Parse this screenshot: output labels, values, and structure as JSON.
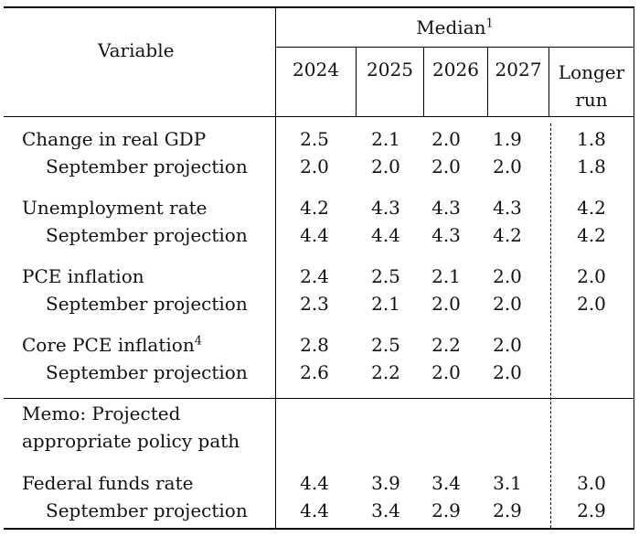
{
  "header": {
    "variable": "Variable",
    "median": "Median",
    "median_note": "1",
    "years": [
      "2024",
      "2025",
      "2026",
      "2027"
    ],
    "longer_run_line1": "Longer",
    "longer_run_line2": "run"
  },
  "rows": [
    {
      "label": "Change in real GDP",
      "note": "",
      "values": [
        "2.5",
        "2.1",
        "2.0",
        "1.9",
        "1.8"
      ]
    },
    {
      "label": "September projection",
      "note": "",
      "values": [
        "2.0",
        "2.0",
        "2.0",
        "2.0",
        "1.8"
      ]
    },
    {
      "label": "Unemployment rate",
      "note": "",
      "values": [
        "4.2",
        "4.3",
        "4.3",
        "4.3",
        "4.2"
      ]
    },
    {
      "label": "September projection",
      "note": "",
      "values": [
        "4.4",
        "4.4",
        "4.3",
        "4.2",
        "4.2"
      ]
    },
    {
      "label": "PCE inflation",
      "note": "",
      "values": [
        "2.4",
        "2.5",
        "2.1",
        "2.0",
        "2.0"
      ]
    },
    {
      "label": "September projection",
      "note": "",
      "values": [
        "2.3",
        "2.1",
        "2.0",
        "2.0",
        "2.0"
      ]
    },
    {
      "label": "Core PCE inflation",
      "note": "4",
      "values": [
        "2.8",
        "2.5",
        "2.2",
        "2.0",
        ""
      ]
    },
    {
      "label": "September projection",
      "note": "",
      "values": [
        "2.6",
        "2.2",
        "2.0",
        "2.0",
        ""
      ]
    }
  ],
  "memo": {
    "line1": "Memo: Projected",
    "line2": "appropriate policy path",
    "rows": [
      {
        "label": "Federal funds rate",
        "values": [
          "4.4",
          "3.9",
          "3.4",
          "3.1",
          "3.0"
        ]
      },
      {
        "label": "September projection",
        "values": [
          "4.4",
          "3.4",
          "2.9",
          "2.9",
          "2.9"
        ]
      }
    ]
  }
}
